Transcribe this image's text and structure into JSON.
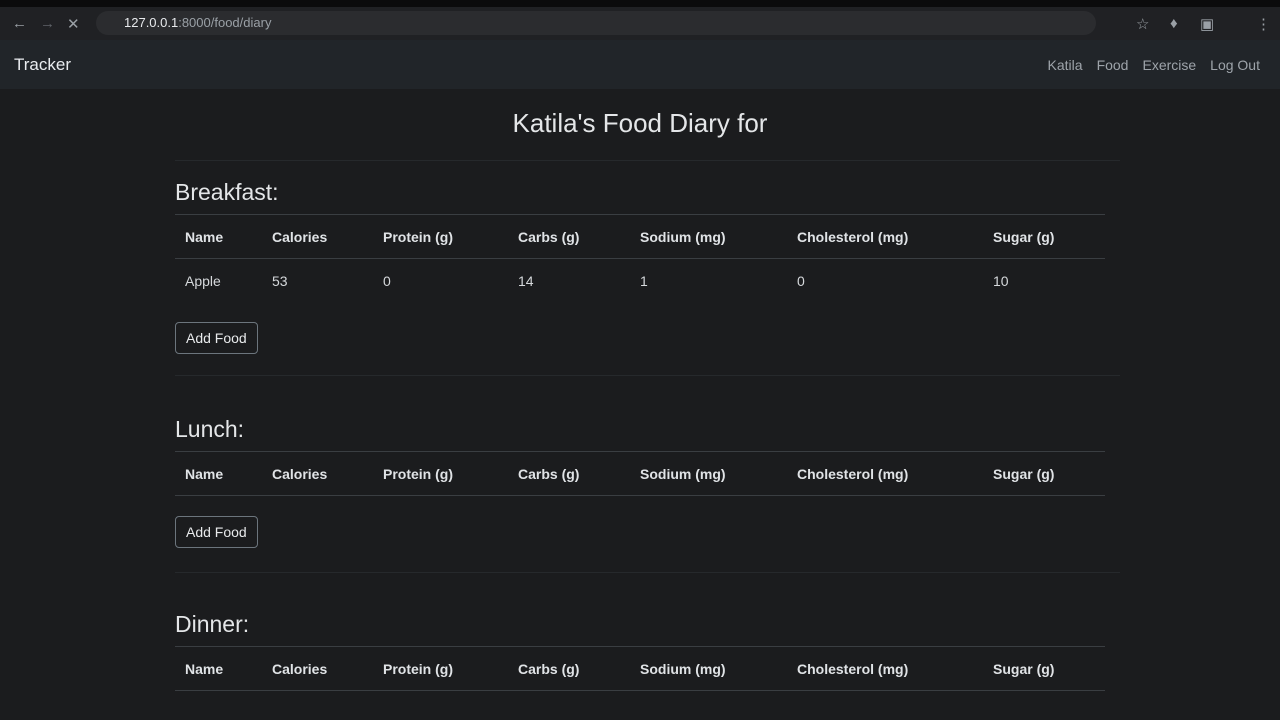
{
  "browser": {
    "url_host": "127.0.0.1",
    "url_path": ":8000/food/diary"
  },
  "navbar": {
    "brand": "Tracker",
    "links": [
      "Katila",
      "Food",
      "Exercise",
      "Log Out"
    ]
  },
  "title": "Katila's Food Diary for",
  "sections": [
    {
      "heading": "Breakfast:",
      "headers": [
        "Name",
        "Calories",
        "Protein (g)",
        "Carbs (g)",
        "Sodium (mg)",
        "Cholesterol (mg)",
        "Sugar (g)"
      ],
      "rows": [
        [
          "Apple",
          "53",
          "0",
          "14",
          "1",
          "0",
          "10"
        ]
      ],
      "button": "Add Food"
    },
    {
      "heading": "Lunch:",
      "headers": [
        "Name",
        "Calories",
        "Protein (g)",
        "Carbs (g)",
        "Sodium (mg)",
        "Cholesterol (mg)",
        "Sugar (g)"
      ],
      "rows": [],
      "button": "Add Food"
    },
    {
      "heading": "Dinner:",
      "headers": [
        "Name",
        "Calories",
        "Protein (g)",
        "Carbs (g)",
        "Sodium (mg)",
        "Cholesterol (mg)",
        "Sugar (g)"
      ],
      "rows": []
    }
  ]
}
